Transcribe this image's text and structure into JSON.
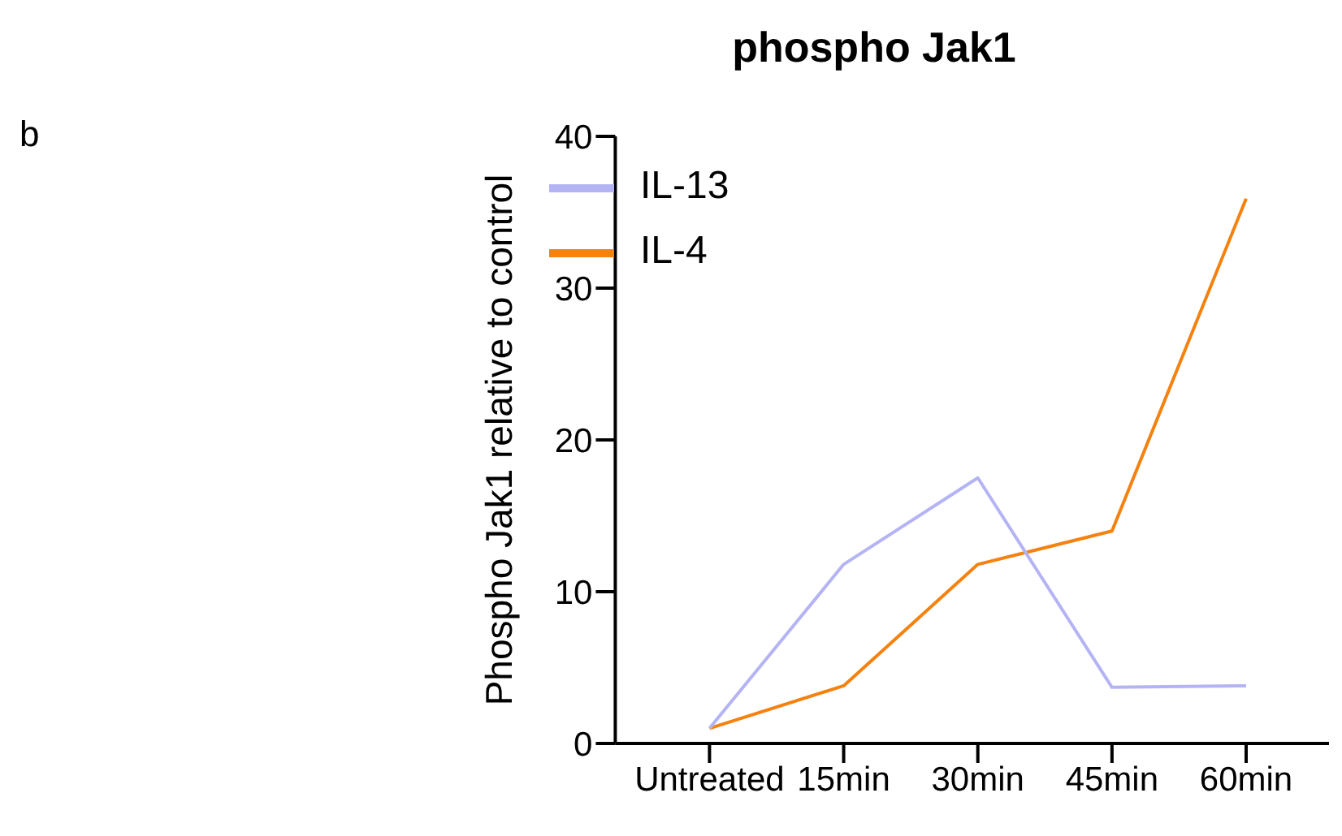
{
  "chart_data": {
    "type": "line",
    "title": "phospho Jak1",
    "ylabel": "Phospho Jak1 relative to control",
    "annotations": [
      "b"
    ],
    "categories": [
      "Untreated",
      "15min",
      "30min",
      "45min",
      "60min"
    ],
    "series": [
      {
        "name": "IL-4",
        "color": "#f5820f",
        "values": [
          1,
          3.8,
          11.8,
          14,
          35.9
        ]
      },
      {
        "name": "IL-13",
        "color": "#b4b4f5",
        "values": [
          1,
          11.8,
          17.5,
          3.7,
          3.8
        ]
      }
    ],
    "ylim": [
      0,
      40
    ],
    "yticks": [
      0,
      10,
      20,
      30,
      40
    ],
    "grid": false,
    "legend": "top left",
    "marker": "none",
    "line_style": "solid"
  }
}
